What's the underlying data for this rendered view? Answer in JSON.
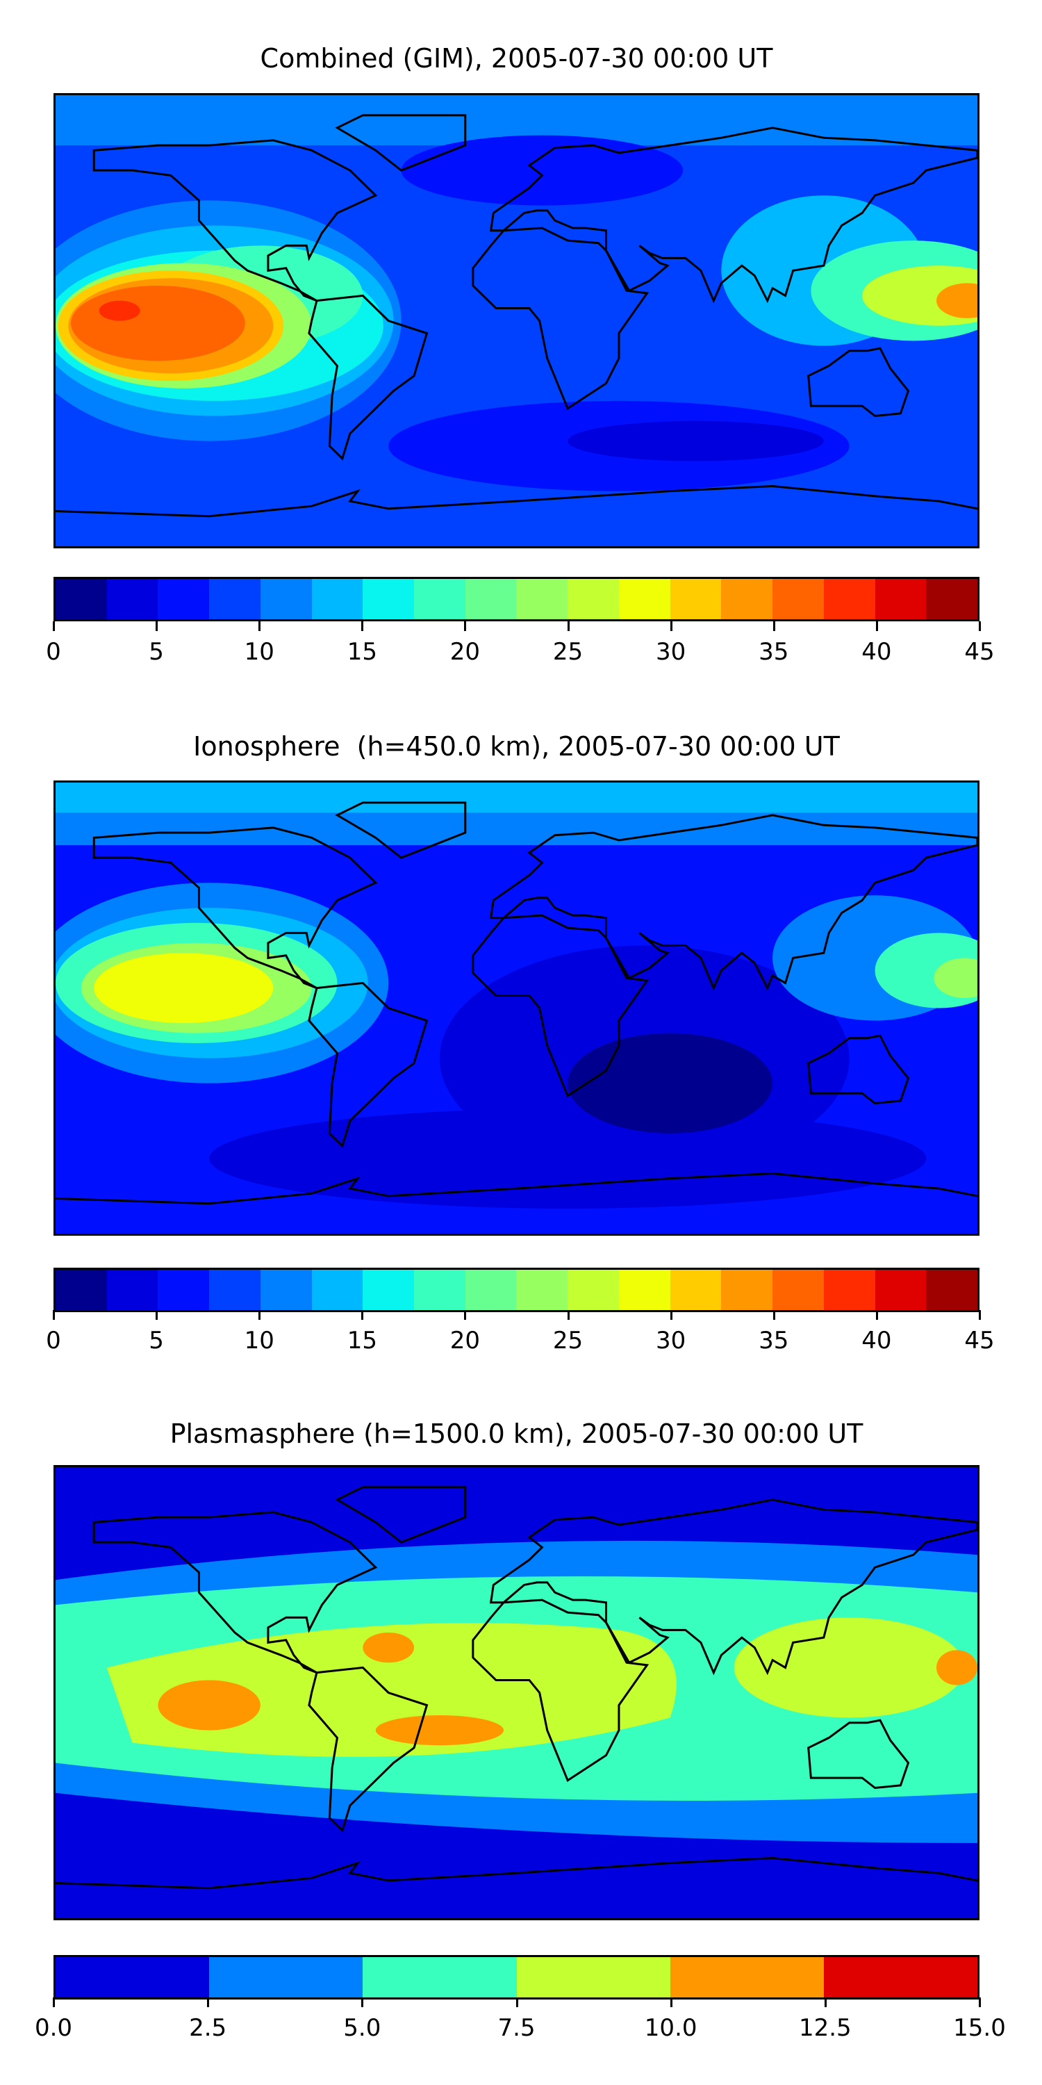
{
  "chart_data": [
    {
      "type": "heatmap",
      "title": "Combined (GIM), 2005-07-30 00:00 UT",
      "projection": "plate-carree",
      "lon_range": [
        -180,
        180
      ],
      "lat_range": [
        -90,
        90
      ],
      "colorbar": {
        "ticks": [
          "0",
          "5",
          "10",
          "15",
          "20",
          "25",
          "30",
          "35",
          "40",
          "45"
        ],
        "range": [
          0,
          45
        ],
        "levels": 18,
        "colors": [
          "#00008f",
          "#0000df",
          "#0010ff",
          "#0040ff",
          "#0080ff",
          "#00b8ff",
          "#08f4ee",
          "#38ffbe",
          "#66ff90",
          "#98ff60",
          "#c4ff32",
          "#f0ff06",
          "#ffcc00",
          "#ff9800",
          "#ff6400",
          "#ff2c00",
          "#df0000",
          "#9f0000"
        ]
      },
      "features": [
        {
          "desc": "max over eastern Pacific",
          "lon": [
            -165,
            -110
          ],
          "lat": [
            -25,
            10
          ],
          "value": "35-40"
        },
        {
          "desc": "secondary max western Pacific",
          "lon": [
            150,
            180
          ],
          "lat": [
            -5,
            15
          ],
          "value": "30-35"
        }
      ]
    },
    {
      "type": "heatmap",
      "title": "Ionosphere  (h=450.0 km), 2005-07-30 00:00 UT",
      "projection": "plate-carree",
      "lon_range": [
        -180,
        180
      ],
      "lat_range": [
        -90,
        90
      ],
      "colorbar": {
        "ticks": [
          "0",
          "5",
          "10",
          "15",
          "20",
          "25",
          "30",
          "35",
          "40",
          "45"
        ],
        "range": [
          0,
          45
        ],
        "levels": 18,
        "colors": [
          "#00008f",
          "#0000df",
          "#0010ff",
          "#0040ff",
          "#0080ff",
          "#00b8ff",
          "#08f4ee",
          "#38ffbe",
          "#66ff90",
          "#98ff60",
          "#c4ff32",
          "#f0ff06",
          "#ffcc00",
          "#ff9800",
          "#ff6400",
          "#ff2c00",
          "#df0000",
          "#9f0000"
        ]
      },
      "features": [
        {
          "desc": "max over eastern Pacific",
          "lon": [
            -165,
            -120
          ],
          "lat": [
            -10,
            10
          ],
          "value": "27.5-30"
        }
      ]
    },
    {
      "type": "heatmap",
      "title": "Plasmasphere (h=1500.0 km), 2005-07-30 00:00 UT",
      "projection": "plate-carree",
      "lon_range": [
        -180,
        180
      ],
      "lat_range": [
        -90,
        90
      ],
      "colorbar": {
        "ticks": [
          "0.0",
          "2.5",
          "5.0",
          "7.5",
          "10.0",
          "12.5",
          "15.0"
        ],
        "range": [
          0,
          15
        ],
        "levels": 6,
        "colors": [
          "#0000df",
          "#0080ff",
          "#38ffbe",
          "#c4ff32",
          "#ff9800",
          "#df0000"
        ]
      },
      "features": [
        {
          "desc": "equatorial band",
          "lon": [
            -180,
            180
          ],
          "lat": [
            -35,
            30
          ],
          "value": "7.5-12.5"
        }
      ]
    }
  ]
}
